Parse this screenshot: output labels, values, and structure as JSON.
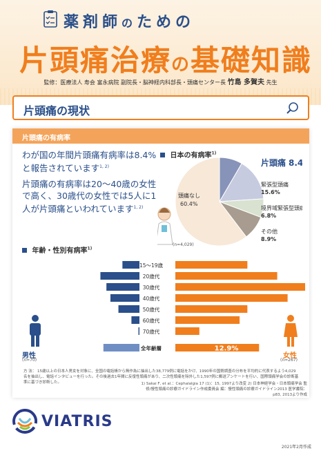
{
  "header": {
    "subtitle_a": "薬剤師",
    "subtitle_no": "の",
    "subtitle_b": "ための",
    "title_a": "片頭痛治療",
    "title_no": "の",
    "title_b": "基礎知識",
    "supervisor_affil": "監修：医療法人 寿会 富永病院 副院長・脳神経内科部長・頭痛センター長",
    "supervisor_name": "竹島 多賀夫",
    "supervisor_suffix": "先生"
  },
  "section": {
    "title": "片頭痛の現状",
    "subsection": "片頭痛の有病率"
  },
  "lead": {
    "para1": "わが国の年間片頭痛有病率は8.4%と報告されています",
    "para1_ref": "1, 2)",
    "para2": "片頭痛の有病率は20〜40歳の女性で高く、30歳代の女性では5人に1人が片頭痛といわれています",
    "para2_ref": "1, 2)"
  },
  "pie_chart": {
    "title": "日本の有病率",
    "title_ref": "1)",
    "n_label": "(n=4,029)",
    "labels": {
      "migraine_name": "片頭痛",
      "migraine_value": "8.4%",
      "tension_name": "緊張型頭痛",
      "tension_value": "15.6%",
      "borderline_name": "境界域緊張型頭痛",
      "borderline_value": "6.8%",
      "other_name": "その他",
      "other_value": "8.9%",
      "none_name": "頭痛なし",
      "none_value": "60.4%"
    }
  },
  "bar_chart": {
    "title": "年齢・性別有病率",
    "title_ref": "1)",
    "male_label": "男性",
    "male_n": "(n=70)",
    "female_label": "女性",
    "female_n": "(n=267)",
    "male_total": "3.6%",
    "female_total": "12.9%"
  },
  "colors": {
    "orange": "#f07e1d",
    "navy": "#2a4f8a",
    "pie_migraine": "#8793b8",
    "pie_tension": "#c7cbe0",
    "pie_borderline": "#d9e2d0",
    "pie_other": "#a79c8f",
    "pie_none": "#f7e8d8",
    "male_bar": "#2a4f8a",
    "female_bar": "#f07e1d"
  },
  "chart_data": [
    {
      "type": "pie",
      "title": "日本の有病率",
      "slices": [
        {
          "name": "片頭痛",
          "value": 8.4
        },
        {
          "name": "緊張型頭痛",
          "value": 15.6
        },
        {
          "name": "境界域緊張型頭痛",
          "value": 6.8
        },
        {
          "name": "その他",
          "value": 8.9
        },
        {
          "name": "頭痛なし",
          "value": 60.4
        }
      ]
    },
    {
      "type": "bar",
      "title": "年齢・性別有病率",
      "categories": [
        "15〜19歳",
        "20歳代",
        "30歳代",
        "40歳代",
        "50歳代",
        "60歳代",
        "70歳代",
        "全年齢層"
      ],
      "series": [
        {
          "name": "男性",
          "values": [
            1.7,
            3.9,
            3.3,
            2.9,
            2.1,
            0.8,
            0.1,
            3.6
          ]
        },
        {
          "name": "女性",
          "values": [
            11.1,
            15.7,
            20.0,
            17.3,
            11.1,
            9.9,
            3.7,
            12.9
          ]
        }
      ],
      "ylim": [
        0,
        22
      ]
    }
  ],
  "footnote": {
    "lead": "方 法：",
    "text": "15歳以上の日本人男女を対象に、全国の電話帳から無作為に抽出した38,779例に電話をかけ、1990年の国勢調査の分布を平均的に代表するよう4,029名を抽出し、電話インタビューを行った。その後過去1年間に反復性頭痛があり、二次性頭痛を除外した1,597例に郵送アンケートを行い、国際頭痛学会の診断基準に基づき診断した。"
  },
  "refs": {
    "ref1": "1) Sakai F, et al.：Cephalalgia 17 (1)：15, 1997より改変",
    "ref2": "2) 日本神経学会・日本頭痛学会 監修/慢性頭痛の診療ガイドライン作成委員会 編：慢性頭痛の診療ガイドライン2013 医学書院：p83, 2013より作成"
  },
  "footer": {
    "brand": "VIATRIS",
    "date": "2021年2月作成"
  }
}
